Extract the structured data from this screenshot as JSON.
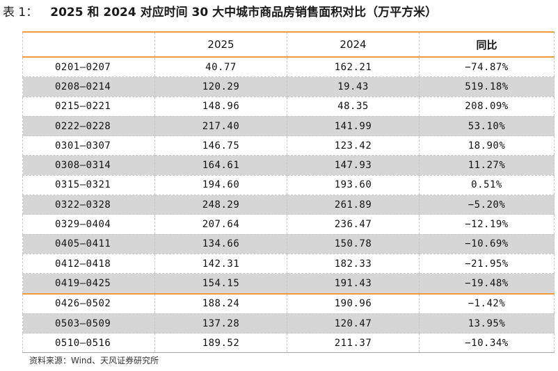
{
  "title": {
    "prefix": "表 1：",
    "text": "2025 和 2024 对应时间 30 大中城市商品房销售面积对比（万平方米）"
  },
  "table": {
    "headers": [
      "",
      "2025",
      "2024",
      "同比"
    ],
    "rows": [
      [
        "0201—0207",
        "40.77",
        "162.21",
        "−74.87%"
      ],
      [
        "0208—0214",
        "120.29",
        "19.43",
        "519.18%"
      ],
      [
        "0215—0221",
        "148.96",
        "48.35",
        "208.09%"
      ],
      [
        "0222—0228",
        "217.40",
        "141.99",
        "53.10%"
      ],
      [
        "0301—0307",
        "146.75",
        "123.42",
        "18.90%"
      ],
      [
        "0308—0314",
        "164.61",
        "147.93",
        "11.27%"
      ],
      [
        "0315—0321",
        "194.60",
        "193.60",
        "0.51%"
      ],
      [
        "0322—0328",
        "248.29",
        "261.89",
        "−5.20%"
      ],
      [
        "0329—0404",
        "207.64",
        "236.47",
        "−12.19%"
      ],
      [
        "0405—0411",
        "134.66",
        "150.78",
        "−10.69%"
      ],
      [
        "0412—0418",
        "142.31",
        "182.33",
        "−21.95%"
      ],
      [
        "0419—0425",
        "154.15",
        "191.43",
        "−19.48%"
      ],
      [
        "0426—0502",
        "188.24",
        "190.96",
        "−1.42%"
      ],
      [
        "0503—0509",
        "137.28",
        "120.47",
        "13.95%"
      ],
      [
        "0510—0516",
        "189.52",
        "211.37",
        "−10.34%"
      ]
    ]
  },
  "source": "资料来源：Wind、天风证券研究所",
  "colors": {
    "accent_line": "#f19b3a",
    "row_shade": "#d6d6d6"
  }
}
